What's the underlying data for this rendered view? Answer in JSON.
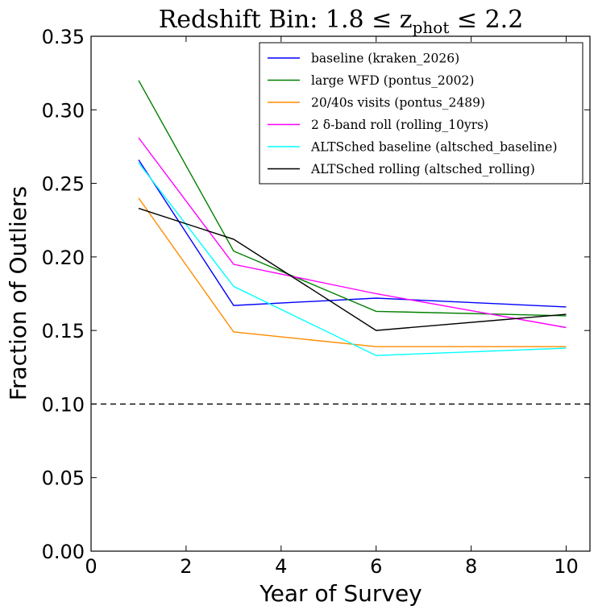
{
  "chart_data": {
    "type": "line",
    "title": "Redshift Bin: 1.8 ≤ z",
    "title_sub": "phot",
    "title_tail": " ≤ 2.2",
    "xlabel": "Year of Survey",
    "ylabel": "Fraction of Outliers",
    "xlim": [
      0,
      10.5
    ],
    "ylim": [
      0,
      0.35
    ],
    "xticks": [
      0,
      2,
      4,
      6,
      8,
      10
    ],
    "xtick_labels": [
      "0",
      "2",
      "4",
      "6",
      "8",
      "10"
    ],
    "yticks": [
      0,
      0.05,
      0.1,
      0.15,
      0.2,
      0.25,
      0.3,
      0.35
    ],
    "ytick_labels": [
      "0.00",
      "0.05",
      "0.10",
      "0.15",
      "0.20",
      "0.25",
      "0.30",
      "0.35"
    ],
    "grid": false,
    "legend_position": "top-right",
    "x": [
      1,
      3,
      6,
      10
    ],
    "series": [
      {
        "name": "baseline (kraken_2026)",
        "color": "#0000ff",
        "values": [
          0.266,
          0.167,
          0.172,
          0.166
        ]
      },
      {
        "name": "large WFD (pontus_2002)",
        "color": "#008000",
        "values": [
          0.32,
          0.204,
          0.163,
          0.16
        ]
      },
      {
        "name": "20/40s visits (pontus_2489)",
        "color": "#ff8c00",
        "values": [
          0.24,
          0.149,
          0.139,
          0.139
        ]
      },
      {
        "name": "2 δ-band roll (rolling_10yrs)",
        "color": "#ff00ff",
        "values": [
          0.281,
          0.195,
          0.175,
          0.152
        ]
      },
      {
        "name": "ALTSched baseline (altsched_baseline)",
        "color": "#00ffff",
        "values": [
          0.264,
          0.18,
          0.133,
          0.138
        ]
      },
      {
        "name": "ALTSched rolling (altsched_rolling)",
        "color": "#000000",
        "values": [
          0.233,
          0.212,
          0.15,
          0.161
        ]
      }
    ],
    "reference_line": {
      "y": 0.1,
      "style": "dashed",
      "color": "#000000"
    }
  }
}
